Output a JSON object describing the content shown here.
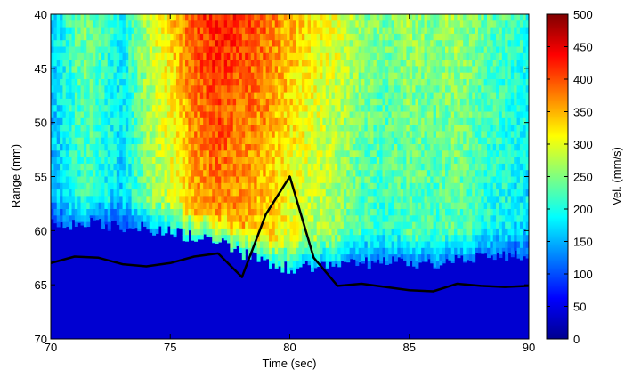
{
  "chart_data": {
    "type": "heatmap",
    "title": "",
    "xlabel": "Time (sec)",
    "ylabel": "Range (mm)",
    "xlim": [
      70,
      90
    ],
    "ylim": [
      40,
      70
    ],
    "y_reversed": true,
    "x_ticks": [
      "70",
      "75",
      "80",
      "85",
      "90"
    ],
    "y_ticks": [
      "40",
      "45",
      "50",
      "55",
      "60",
      "65",
      "70"
    ],
    "colorbar": {
      "label": "Vel. (mm/s)",
      "range": [
        0,
        500
      ],
      "colormap": "jet",
      "ticks": [
        "0",
        "50",
        "100",
        "150",
        "200",
        "250",
        "300",
        "350",
        "400",
        "450",
        "500"
      ]
    },
    "boundary_velocity_mm_s": [
      {
        "t": 70,
        "v": 320
      },
      {
        "t": 71.5,
        "v": 250
      },
      {
        "t": 73,
        "v": 190
      },
      {
        "t": 74,
        "v": 280
      },
      {
        "t": 75,
        "v": 330
      },
      {
        "t": 76,
        "v": 400
      },
      {
        "t": 77,
        "v": 430
      },
      {
        "t": 78,
        "v": 410
      },
      {
        "t": 79,
        "v": 390
      },
      {
        "t": 80,
        "v": 350
      },
      {
        "t": 81,
        "v": 320
      },
      {
        "t": 82,
        "v": 300
      },
      {
        "t": 83,
        "v": 260
      },
      {
        "t": 84,
        "v": 245
      },
      {
        "t": 85,
        "v": 265
      },
      {
        "t": 86,
        "v": 255
      },
      {
        "t": 87,
        "v": 270
      },
      {
        "t": 88,
        "v": 240
      },
      {
        "t": 89,
        "v": 225
      },
      {
        "t": 90,
        "v": 200
      }
    ],
    "boundary_range_mm": [
      {
        "t": 70,
        "y": 59.5
      },
      {
        "t": 72,
        "y": 59.3
      },
      {
        "t": 74,
        "y": 59.8
      },
      {
        "t": 76,
        "y": 60.5
      },
      {
        "t": 77,
        "y": 61.0
      },
      {
        "t": 78,
        "y": 62.0
      },
      {
        "t": 79,
        "y": 62.8
      },
      {
        "t": 80,
        "y": 63.5
      },
      {
        "t": 81,
        "y": 63.2
      },
      {
        "t": 82,
        "y": 63.0
      },
      {
        "t": 84,
        "y": 62.8
      },
      {
        "t": 86,
        "y": 63.0
      },
      {
        "t": 88,
        "y": 62.5
      },
      {
        "t": 90,
        "y": 62.2
      }
    ],
    "series": [
      {
        "type": "line",
        "color": "#000000",
        "x": [
          70,
          71,
          72,
          73,
          74,
          75,
          76,
          77,
          78,
          79,
          80,
          81,
          82,
          83,
          84,
          85,
          86,
          87,
          88,
          89,
          90
        ],
        "y": [
          63.0,
          62.4,
          62.5,
          63.1,
          63.3,
          63.0,
          62.4,
          62.1,
          64.3,
          58.5,
          55.0,
          62.5,
          65.1,
          64.9,
          65.2,
          65.5,
          65.6,
          64.9,
          65.1,
          65.2,
          65.1
        ]
      }
    ]
  }
}
